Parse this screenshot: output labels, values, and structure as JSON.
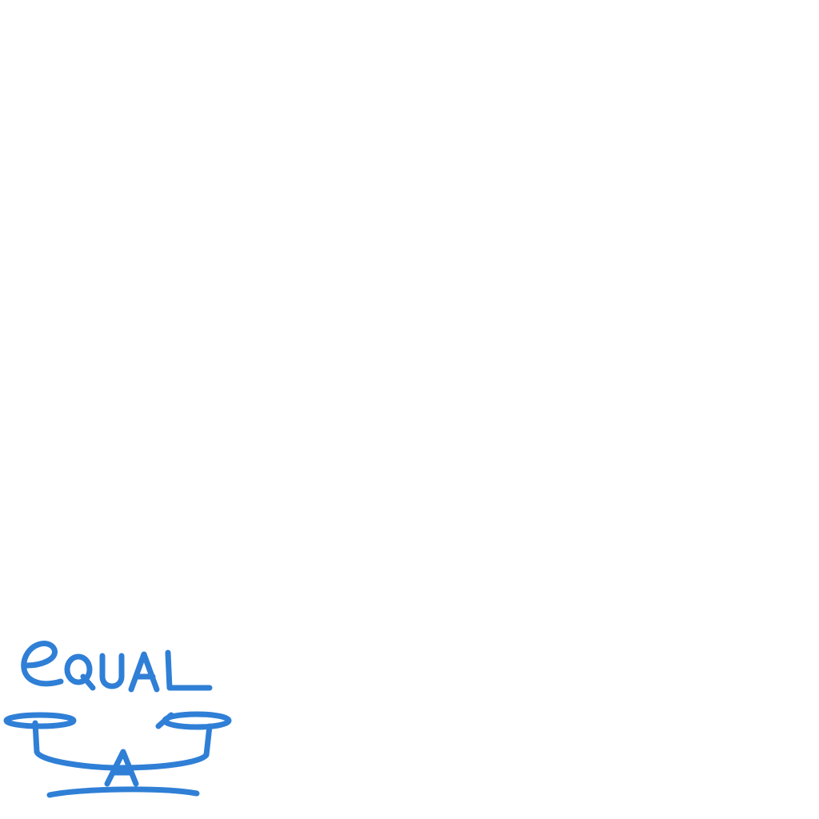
{
  "logo": {
    "wordmark": "EQUAL",
    "accent_color": "#2f7fd6",
    "background_color": "#ffffff",
    "icon": "balance-scale-icon"
  }
}
